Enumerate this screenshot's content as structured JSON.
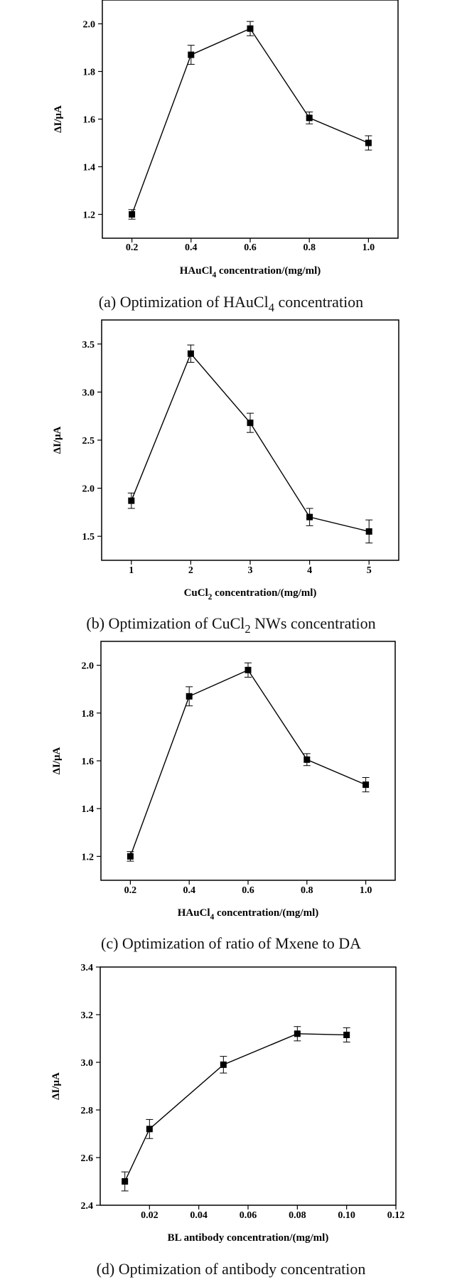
{
  "chart_data": [
    {
      "type": "line",
      "x": [
        0.2,
        0.4,
        0.6,
        0.8,
        1.0
      ],
      "y": [
        1.2,
        1.87,
        1.98,
        1.605,
        1.5
      ],
      "yerr": [
        0.02,
        0.04,
        0.03,
        0.025,
        0.03
      ],
      "xticks": [
        "0.2",
        "0.4",
        "0.6",
        "0.8",
        "1.0"
      ],
      "yticks": [
        "1.2",
        "1.4",
        "1.6",
        "1.8",
        "2.0"
      ],
      "xlim": [
        0.1,
        1.1
      ],
      "ylim": [
        1.1,
        2.1
      ],
      "xlabel": "HAuCl",
      "xlabel_sub": "4",
      "xlabel_after": " concentration/(mg/ml)",
      "ylabel": "ΔI/μA",
      "caption": "(a) Optimization of HAuCl",
      "caption_sub": "4",
      "caption_after": " concentration",
      "marker": "square",
      "grid": false
    },
    {
      "type": "line",
      "x": [
        1,
        2,
        3,
        4,
        5
      ],
      "y": [
        1.87,
        3.4,
        2.68,
        1.7,
        1.55
      ],
      "yerr": [
        0.08,
        0.09,
        0.1,
        0.09,
        0.12
      ],
      "xticks": [
        "1",
        "2",
        "3",
        "4",
        "5"
      ],
      "yticks": [
        "1.5",
        "2.0",
        "2.5",
        "3.0",
        "3.5"
      ],
      "xlim": [
        0.5,
        5.5
      ],
      "ylim": [
        1.25,
        3.75
      ],
      "xlabel": "CuCl",
      "xlabel_sub": "2",
      "xlabel_after": " concentration/(mg/ml)",
      "ylabel": "ΔI/μA",
      "caption": "(b) Optimization of CuCl",
      "caption_sub": "2",
      "caption_after": " NWs concentration",
      "marker": "square",
      "grid": false
    },
    {
      "type": "line",
      "x": [
        0.2,
        0.4,
        0.6,
        0.8,
        1.0
      ],
      "y": [
        1.2,
        1.87,
        1.98,
        1.605,
        1.5
      ],
      "yerr": [
        0.02,
        0.04,
        0.03,
        0.025,
        0.03
      ],
      "xticks": [
        "0.2",
        "0.4",
        "0.6",
        "0.8",
        "1.0"
      ],
      "yticks": [
        "1.2",
        "1.4",
        "1.6",
        "1.8",
        "2.0"
      ],
      "xlim": [
        0.1,
        1.1
      ],
      "ylim": [
        1.1,
        2.1
      ],
      "xlabel": "HAuCl",
      "xlabel_sub": "4",
      "xlabel_after": " concentration/(mg/ml)",
      "ylabel": "ΔI/μA",
      "caption": "(c) Optimization of ratio of Mxene to DA",
      "caption_sub": "",
      "caption_after": "",
      "marker": "square",
      "grid": false
    },
    {
      "type": "line",
      "x": [
        0.01,
        0.02,
        0.05,
        0.08,
        0.1
      ],
      "y": [
        2.5,
        2.72,
        2.99,
        3.12,
        3.115
      ],
      "yerr": [
        0.04,
        0.04,
        0.035,
        0.03,
        0.03
      ],
      "xticks": [
        "0.02",
        "0.04",
        "0.06",
        "0.08",
        "0.10",
        "0.12"
      ],
      "xtick_values": [
        0.02,
        0.04,
        0.06,
        0.08,
        0.1,
        0.12
      ],
      "yticks": [
        "2.4",
        "2.6",
        "2.8",
        "3.0",
        "3.2",
        "3.4"
      ],
      "xlim": [
        0.0,
        0.12
      ],
      "ylim": [
        2.4,
        3.4
      ],
      "xlabel": "BL antibody concentration/(mg/ml)",
      "xlabel_sub": "",
      "xlabel_after": "",
      "ylabel": "ΔI/μA",
      "caption": "(d) Optimization of antibody concentration",
      "caption_sub": "",
      "caption_after": "",
      "marker": "square",
      "grid": false
    }
  ],
  "colors": {
    "line": "#000000",
    "marker": "#000000",
    "frame": "#000000"
  }
}
